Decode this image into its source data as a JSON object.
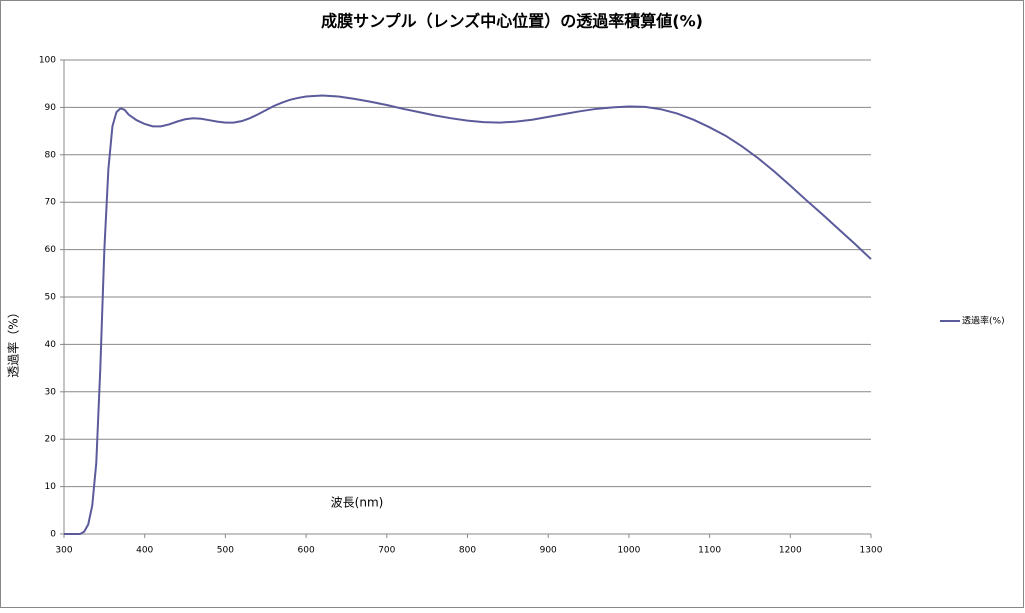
{
  "chart_data": {
    "type": "line",
    "title": "成膜サンプル（レンズ中心位置）の透過率積算値(%)",
    "x_label": "波長(nm)",
    "y_label": "透過率（%）",
    "x": [
      300,
      320,
      325,
      330,
      335,
      340,
      345,
      350,
      355,
      360,
      365,
      370,
      375,
      380,
      390,
      400,
      410,
      420,
      430,
      440,
      450,
      460,
      470,
      480,
      490,
      500,
      510,
      520,
      530,
      540,
      550,
      560,
      570,
      580,
      590,
      600,
      620,
      640,
      660,
      680,
      700,
      720,
      740,
      760,
      780,
      800,
      820,
      840,
      860,
      880,
      900,
      920,
      940,
      960,
      980,
      1000,
      1020,
      1040,
      1060,
      1080,
      1100,
      1120,
      1140,
      1160,
      1180,
      1200,
      1220,
      1240,
      1260,
      1280,
      1300
    ],
    "series": [
      {
        "name": "透過率(%)",
        "color": "#5b5b9b",
        "values": [
          0,
          0,
          0.5,
          2,
          6,
          15,
          35,
          60,
          77,
          86,
          89,
          89.8,
          89.5,
          88.5,
          87.3,
          86.5,
          86,
          86,
          86.4,
          87,
          87.5,
          87.7,
          87.6,
          87.3,
          87,
          86.8,
          86.8,
          87.1,
          87.7,
          88.5,
          89.4,
          90.3,
          91,
          91.6,
          92,
          92.3,
          92.5,
          92.3,
          91.8,
          91.2,
          90.5,
          89.7,
          89,
          88.3,
          87.7,
          87.2,
          86.9,
          86.8,
          87,
          87.4,
          88,
          88.6,
          89.2,
          89.7,
          90,
          90.2,
          90.1,
          89.6,
          88.7,
          87.4,
          85.8,
          84,
          81.8,
          79.3,
          76.5,
          73.5,
          70.4,
          67.4,
          64.3,
          61.2,
          58
        ]
      }
    ],
    "xlim": [
      300,
      1300
    ],
    "xticks": [
      300,
      400,
      500,
      600,
      700,
      800,
      900,
      1000,
      1100,
      1200,
      1300
    ],
    "ylim": [
      0,
      100
    ],
    "yticks": [
      0,
      10,
      20,
      30,
      40,
      50,
      60,
      70,
      80,
      90,
      100
    ],
    "grid": true,
    "legend": "right"
  }
}
